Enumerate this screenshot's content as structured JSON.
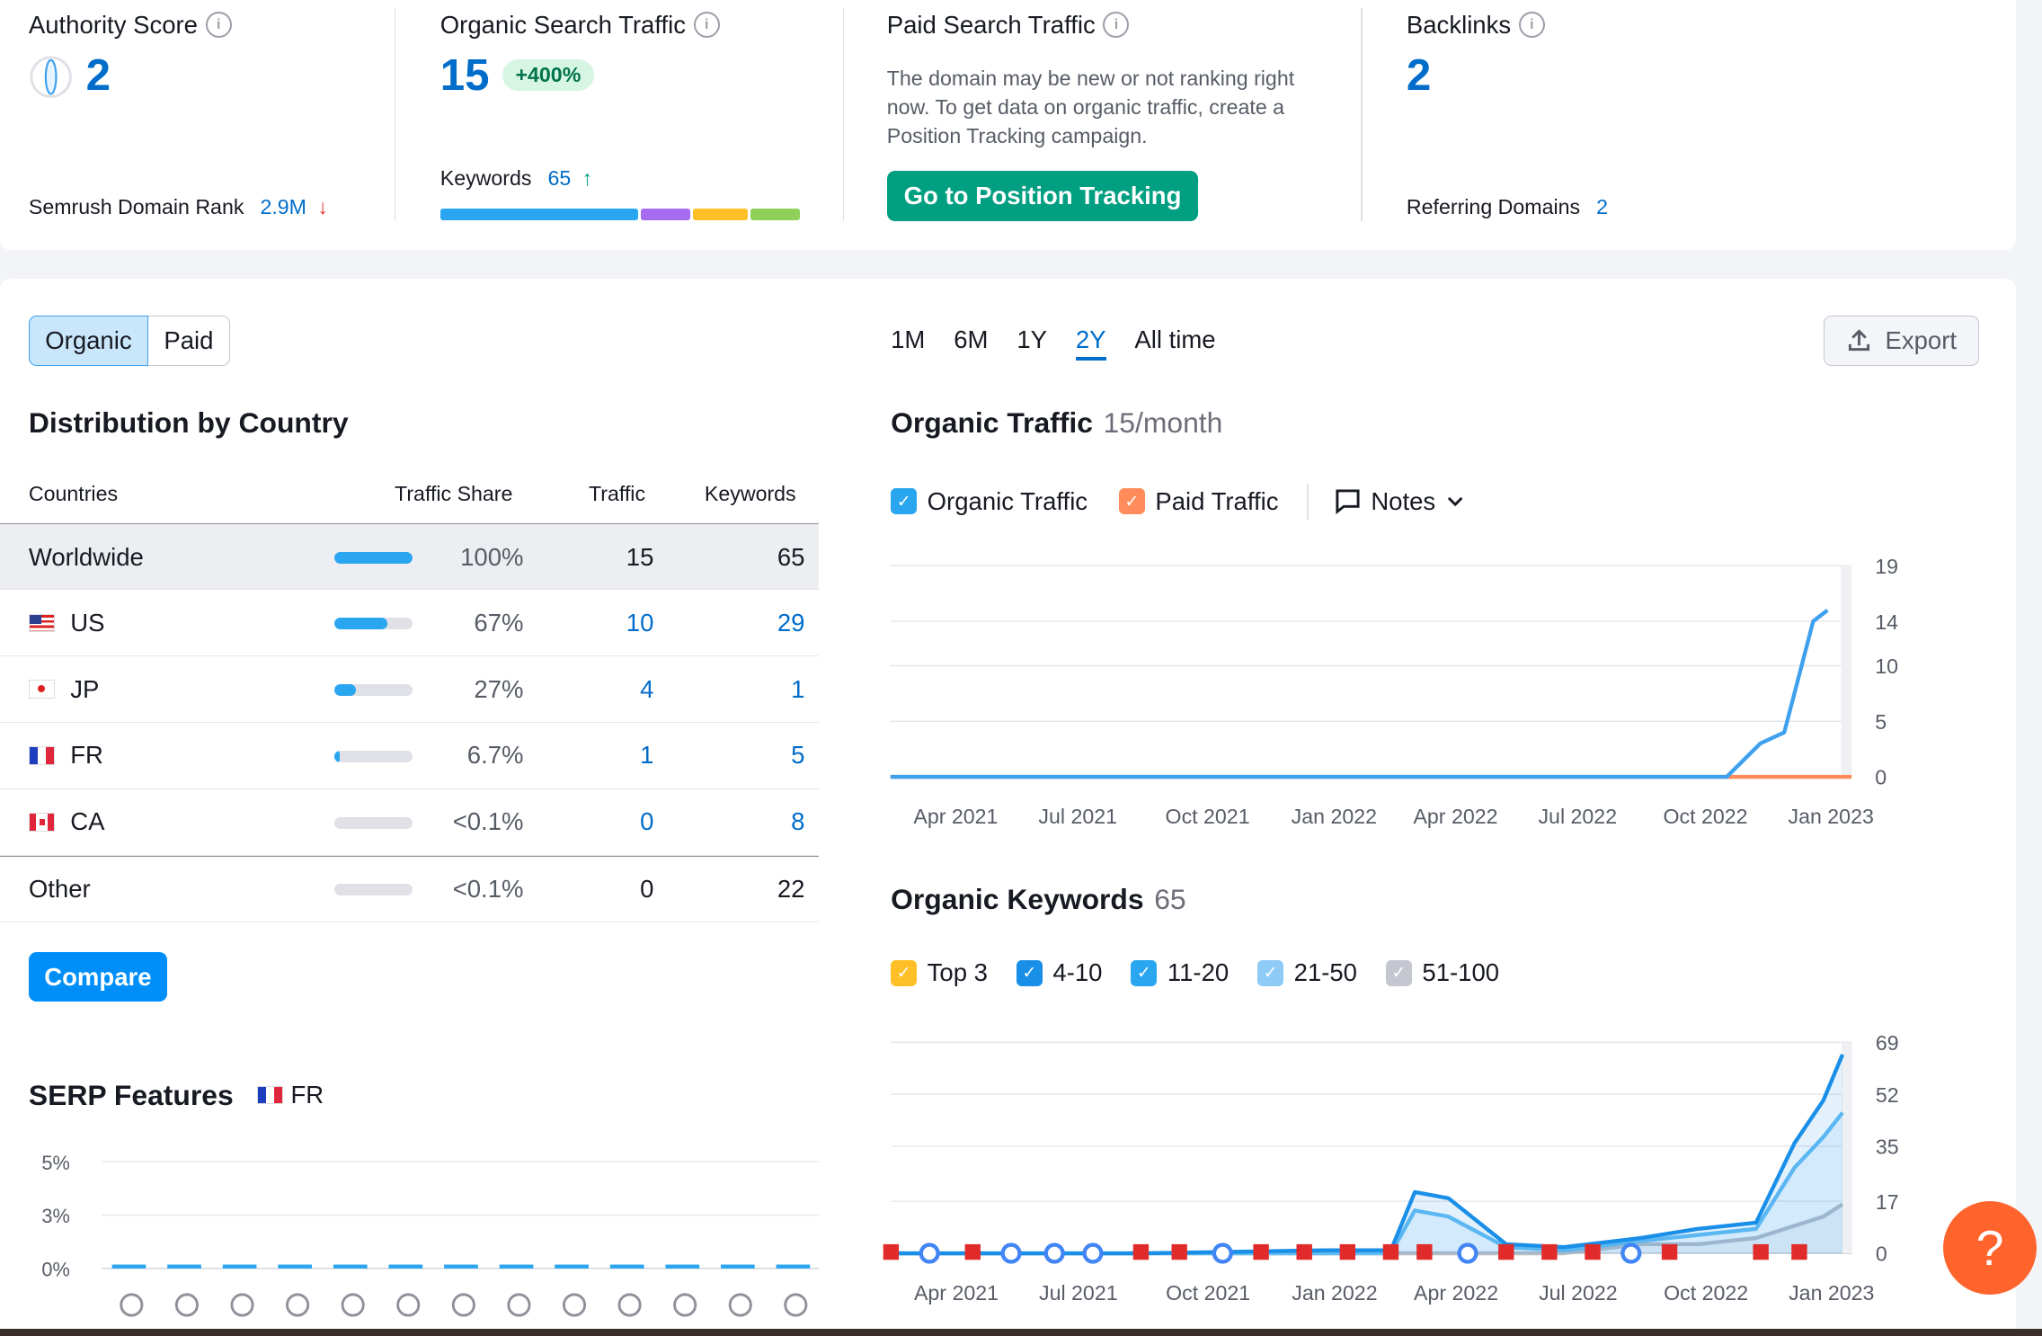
{
  "summary": {
    "authority": {
      "title": "Authority Score",
      "value": "2",
      "rank_label": "Semrush Domain Rank",
      "rank_value": "2.9M"
    },
    "organic": {
      "title": "Organic Search Traffic",
      "value": "15",
      "change": "+400%",
      "kw_label": "Keywords",
      "kw_value": "65"
    },
    "paid": {
      "title": "Paid Search Traffic",
      "description": "The domain may be new or not ranking right now. To get data on organic traffic, create a Position Tracking campaign.",
      "button": "Go to Position Tracking"
    },
    "backlinks": {
      "title": "Backlinks",
      "value": "2",
      "ref_label": "Referring Domains",
      "ref_value": "2"
    }
  },
  "tabs": {
    "organic": "Organic",
    "paid": "Paid"
  },
  "distribution": {
    "title": "Distribution by Country",
    "headers": {
      "countries": "Countries",
      "share": "Traffic Share",
      "traffic": "Traffic",
      "keywords": "Keywords"
    },
    "rows": [
      {
        "name": "Worldwide",
        "share": "100%",
        "share_pct": 100,
        "traffic": "15",
        "keywords": "65"
      },
      {
        "name": "US",
        "share": "67%",
        "share_pct": 67,
        "traffic": "10",
        "keywords": "29"
      },
      {
        "name": "JP",
        "share": "27%",
        "share_pct": 27,
        "traffic": "4",
        "keywords": "1"
      },
      {
        "name": "FR",
        "share": "6.7%",
        "share_pct": 6.7,
        "traffic": "1",
        "keywords": "5"
      },
      {
        "name": "CA",
        "share": "<0.1%",
        "share_pct": 0,
        "traffic": "0",
        "keywords": "8"
      },
      {
        "name": "Other",
        "share": "<0.1%",
        "share_pct": 0,
        "traffic": "0",
        "keywords": "22"
      }
    ],
    "compare_button": "Compare"
  },
  "serp": {
    "title": "SERP Features",
    "country": "FR",
    "y_ticks": [
      "5%",
      "3%",
      "0%"
    ]
  },
  "range": {
    "options": [
      "1M",
      "6M",
      "1Y",
      "2Y",
      "All time"
    ],
    "active": "2Y"
  },
  "export_label": "Export",
  "traffic_chart": {
    "title": "Organic Traffic",
    "subtitle": "15/month",
    "legend_organic": "Organic Traffic",
    "legend_paid": "Paid Traffic",
    "notes": "Notes"
  },
  "keywords_chart": {
    "title": "Organic Keywords",
    "subtitle": "65",
    "legend": [
      "Top 3",
      "4-10",
      "11-20",
      "21-50",
      "51-100"
    ]
  },
  "help": "?",
  "chart_data": [
    {
      "type": "line",
      "x": [
        "Apr 2021",
        "Jul 2021",
        "Oct 2021",
        "Jan 2022",
        "Apr 2022",
        "Jul 2022",
        "Oct 2022",
        "Jan 2023"
      ],
      "y_ticks": [
        0,
        5,
        10,
        14,
        19
      ],
      "ylim": [
        0,
        19
      ],
      "series": [
        {
          "name": "Organic Traffic",
          "color": "#3fa1ee",
          "points": [
            [
              0,
              0
            ],
            [
              0.8,
              0
            ],
            [
              0.87,
              0
            ],
            [
              0.905,
              3
            ],
            [
              0.93,
              4
            ],
            [
              0.96,
              14
            ],
            [
              0.975,
              15
            ]
          ]
        },
        {
          "name": "Paid Traffic",
          "color": "#ff8c5a",
          "points": [
            [
              0,
              0
            ],
            [
              1,
              0
            ]
          ]
        }
      ]
    },
    {
      "type": "area",
      "x": [
        "Apr 2021",
        "Jul 2021",
        "Oct 2021",
        "Jan 2022",
        "Apr 2022",
        "Jul 2022",
        "Oct 2022",
        "Jan 2023"
      ],
      "y_ticks": [
        0,
        17,
        35,
        52,
        69
      ],
      "ylim": [
        0,
        69
      ],
      "series": [
        {
          "name": "4-10",
          "color": "#1a8fe8",
          "points": [
            [
              0,
              0
            ],
            [
              0.26,
              0
            ],
            [
              0.45,
              1
            ],
            [
              0.52,
              1
            ],
            [
              0.545,
              20
            ],
            [
              0.58,
              18
            ],
            [
              0.64,
              3
            ],
            [
              0.7,
              2
            ],
            [
              0.78,
              5
            ],
            [
              0.84,
              8
            ],
            [
              0.9,
              10
            ],
            [
              0.94,
              36
            ],
            [
              0.97,
              50
            ],
            [
              0.99,
              65
            ]
          ]
        },
        {
          "name": "11-20",
          "color": "#64bdf4",
          "points": [
            [
              0,
              0
            ],
            [
              0.45,
              0
            ],
            [
              0.52,
              0
            ],
            [
              0.545,
              14
            ],
            [
              0.58,
              12
            ],
            [
              0.64,
              2
            ],
            [
              0.7,
              1
            ],
            [
              0.78,
              4
            ],
            [
              0.84,
              6
            ],
            [
              0.9,
              8
            ],
            [
              0.94,
              28
            ],
            [
              0.97,
              38
            ],
            [
              0.99,
              46
            ]
          ]
        },
        {
          "name": "51-100",
          "color": "#b8bcc4",
          "points": [
            [
              0,
              0
            ],
            [
              0.7,
              0
            ],
            [
              0.78,
              3
            ],
            [
              0.84,
              3
            ],
            [
              0.9,
              5
            ],
            [
              0.94,
              9
            ],
            [
              0.97,
              12
            ],
            [
              0.99,
              16
            ]
          ]
        }
      ]
    }
  ]
}
